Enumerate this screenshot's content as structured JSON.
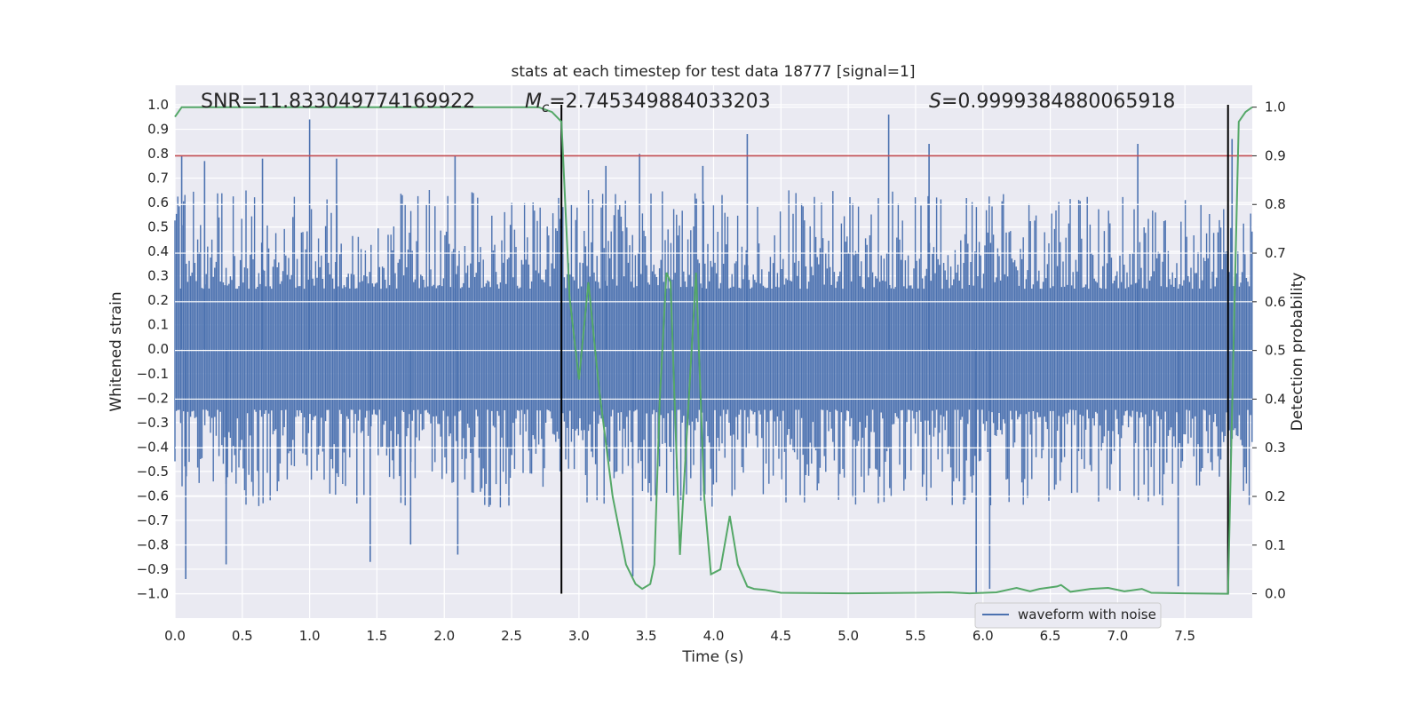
{
  "chart_data": {
    "type": "line",
    "title": "stats at each timestep for test data 18777 [signal=1]",
    "xlabel": "Time (s)",
    "ylabel": "Whitened strain",
    "ylabel_right": "Detection probability",
    "xlim": [
      0.0,
      8.0
    ],
    "ylim": [
      -1.1,
      1.08
    ],
    "ylim_right": [
      -0.05,
      1.045
    ],
    "xticks": [
      0.0,
      0.5,
      1.0,
      1.5,
      2.0,
      2.5,
      3.0,
      3.5,
      4.0,
      4.5,
      5.0,
      5.5,
      6.0,
      6.5,
      7.0,
      7.5
    ],
    "yticks": [
      1.0,
      0.9,
      0.8,
      0.7,
      0.6,
      0.5,
      0.4,
      0.3,
      0.2,
      0.1,
      0.0,
      -0.1,
      -0.2,
      -0.3,
      -0.4,
      -0.5,
      -0.6,
      -0.7,
      -0.8,
      -0.9,
      -1.0
    ],
    "yticks_right": [
      1.0,
      0.9,
      0.8,
      0.7,
      0.6,
      0.5,
      0.4,
      0.3,
      0.2,
      0.1,
      0.0
    ],
    "grid": true,
    "legend_position": "bottom-right",
    "annotations": {
      "snr": "SNR=11.833049774169922",
      "mc_symbol": "M",
      "mc_sub": "c",
      "mc_value": "=2.745349884033203",
      "s_symbol": "S",
      "s_value": "=0.9999384880065918"
    },
    "waveform": {
      "name": "waveform with noise",
      "color": "#4c72b0",
      "typical_envelope": [
        -0.45,
        0.45
      ],
      "peaks": [
        {
          "x": 0.05,
          "y": 0.79
        },
        {
          "x": 0.08,
          "y": -0.94
        },
        {
          "x": 0.22,
          "y": 0.77
        },
        {
          "x": 0.38,
          "y": -0.88
        },
        {
          "x": 0.65,
          "y": 0.78
        },
        {
          "x": 1.0,
          "y": 0.94
        },
        {
          "x": 1.2,
          "y": 0.78
        },
        {
          "x": 1.45,
          "y": -0.87
        },
        {
          "x": 1.75,
          "y": -0.8
        },
        {
          "x": 2.08,
          "y": 0.79
        },
        {
          "x": 2.1,
          "y": -0.84
        },
        {
          "x": 3.2,
          "y": 0.75
        },
        {
          "x": 3.4,
          "y": -0.93
        },
        {
          "x": 3.45,
          "y": 0.8
        },
        {
          "x": 3.92,
          "y": 0.75
        },
        {
          "x": 4.25,
          "y": 0.88
        },
        {
          "x": 5.3,
          "y": 0.96
        },
        {
          "x": 5.6,
          "y": 0.84
        },
        {
          "x": 5.95,
          "y": -1.0
        },
        {
          "x": 6.05,
          "y": -0.98
        },
        {
          "x": 7.15,
          "y": 0.84
        },
        {
          "x": 7.45,
          "y": -0.97
        },
        {
          "x": 7.85,
          "y": 0.86
        }
      ]
    },
    "threshold": {
      "value": 0.9,
      "axis": "right",
      "color": "#c44e52"
    },
    "event_markers": {
      "x": [
        2.87,
        7.82
      ],
      "y": [
        -1.0,
        1.0
      ],
      "color": "#000000"
    },
    "probability": {
      "color": "#55a868",
      "x": [
        0.0,
        0.05,
        0.1,
        0.5,
        1.0,
        1.5,
        2.0,
        2.5,
        2.7,
        2.8,
        2.87,
        2.93,
        3.0,
        3.07,
        3.15,
        3.25,
        3.35,
        3.42,
        3.47,
        3.53,
        3.56,
        3.6,
        3.65,
        3.68,
        3.75,
        3.82,
        3.87,
        3.93,
        3.98,
        4.05,
        4.12,
        4.18,
        4.25,
        4.3,
        4.38,
        4.5,
        5.0,
        5.5,
        5.75,
        5.9,
        6.1,
        6.25,
        6.35,
        6.42,
        6.55,
        6.58,
        6.65,
        6.8,
        6.93,
        7.05,
        7.18,
        7.25,
        7.5,
        7.82,
        7.86,
        7.9,
        7.95,
        8.0
      ],
      "y": [
        0.98,
        1.0,
        1.0,
        1.0,
        1.0,
        1.0,
        1.0,
        1.0,
        1.0,
        0.99,
        0.97,
        0.61,
        0.44,
        0.64,
        0.42,
        0.2,
        0.06,
        0.02,
        0.01,
        0.02,
        0.06,
        0.4,
        0.66,
        0.64,
        0.08,
        0.42,
        0.66,
        0.2,
        0.04,
        0.05,
        0.16,
        0.06,
        0.015,
        0.01,
        0.008,
        0.002,
        0.001,
        0.002,
        0.003,
        0.001,
        0.003,
        0.012,
        0.005,
        0.01,
        0.015,
        0.018,
        0.004,
        0.01,
        0.012,
        0.005,
        0.01,
        0.002,
        0.001,
        0.0,
        0.5,
        0.97,
        0.99,
        1.0
      ]
    }
  },
  "legend": {
    "label": "waveform with noise"
  }
}
